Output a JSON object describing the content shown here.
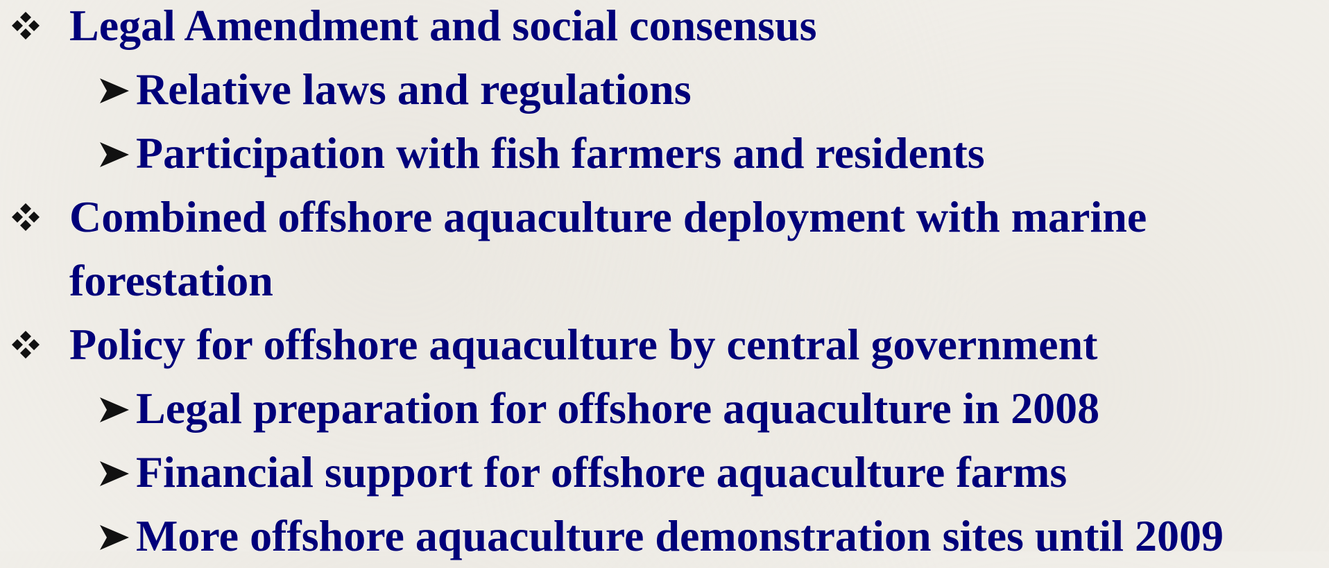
{
  "items": [
    {
      "text": "Legal Amendment and social consensus",
      "subitems": [
        "Relative laws and regulations",
        "Participation with fish farmers and residents"
      ]
    },
    {
      "text": "Combined offshore aquaculture deployment with marine forestation",
      "subitems": []
    },
    {
      "text": "Policy for offshore aquaculture by central government",
      "subitems": [
        "Legal preparation for offshore aquaculture in 2008",
        "Financial support for offshore aquaculture farms",
        "More offshore aquaculture demonstration sites until 2009"
      ]
    }
  ]
}
